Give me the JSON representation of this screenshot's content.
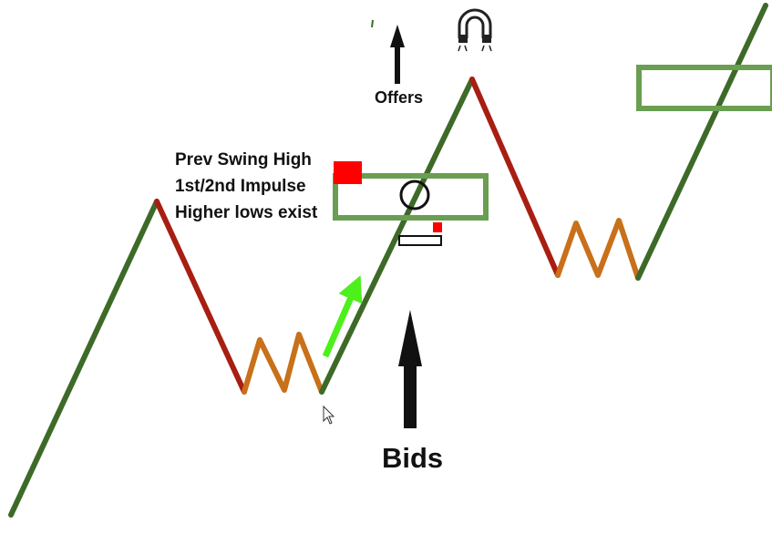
{
  "labels": {
    "prev_swing_high": "Prev Swing High",
    "impulse": "1st/2nd Impulse",
    "higher_lows": "Higher lows exist",
    "offers": "Offers",
    "bids": "Bids"
  },
  "colors": {
    "up_leg": "#3d6a28",
    "down_leg": "#a81e12",
    "consolidation": "#c8701a",
    "zone": "#6a9e52",
    "marker": "#ff0000",
    "momentum_arrow": "#4cf01a",
    "text": "#111111"
  },
  "icons": {
    "magnet": "magnet-icon",
    "cursor": "mouse-cursor-icon",
    "up_arrow": "arrow-up-icon"
  }
}
